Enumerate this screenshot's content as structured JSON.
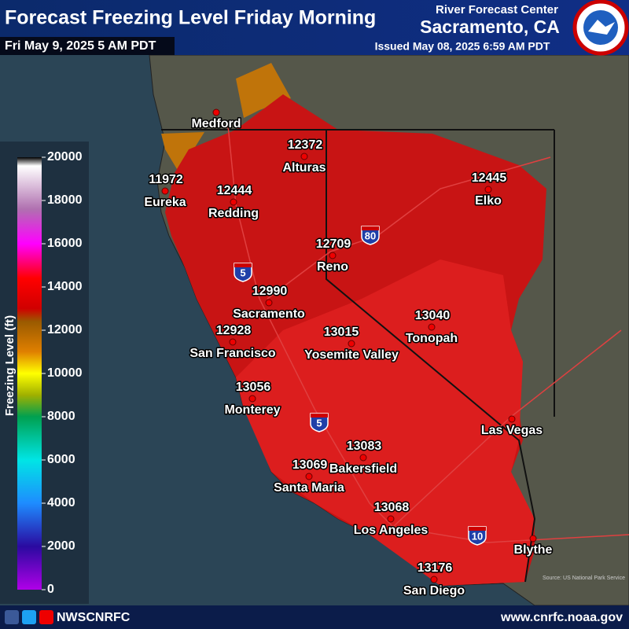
{
  "header": {
    "title": "Forecast Freezing Level Friday Morning",
    "valid_time": "Fri May 9, 2025 5 AM PDT",
    "agency": "River Forecast Center",
    "office": "Sacramento, CA",
    "issued": "Issued May 08, 2025 6:59 AM PDT"
  },
  "legend": {
    "title": "Freezing Level (ft)",
    "ticks": [
      0,
      2000,
      4000,
      6000,
      8000,
      10000,
      12000,
      14000,
      16000,
      18000,
      20000
    ]
  },
  "cities": [
    {
      "name": "Medford"
    },
    {
      "name": "Alturas",
      "value": 12372
    },
    {
      "name": "Eureka",
      "value": 11972
    },
    {
      "name": "Redding",
      "value": 12444
    },
    {
      "name": "Elko",
      "value": 12445
    },
    {
      "name": "Reno",
      "value": 12709
    },
    {
      "name": "Sacramento",
      "value": 12990
    },
    {
      "name": "San Francisco",
      "value": 12928
    },
    {
      "name": "Tonopah",
      "value": 13040
    },
    {
      "name": "Yosemite Valley",
      "value": 13015
    },
    {
      "name": "Monterey",
      "value": 13056
    },
    {
      "name": "Las Vegas"
    },
    {
      "name": "Bakersfield",
      "value": 13083
    },
    {
      "name": "Santa Maria",
      "value": 13069
    },
    {
      "name": "Los Angeles",
      "value": 13068
    },
    {
      "name": "Blythe"
    },
    {
      "name": "San Diego",
      "value": 13176
    }
  ],
  "highways": [
    "5",
    "80",
    "5",
    "10"
  ],
  "source": "Source: US National Park Service",
  "footer": {
    "social": "NWSCNRFC",
    "url": "www.cnrfc.noaa.gov"
  }
}
